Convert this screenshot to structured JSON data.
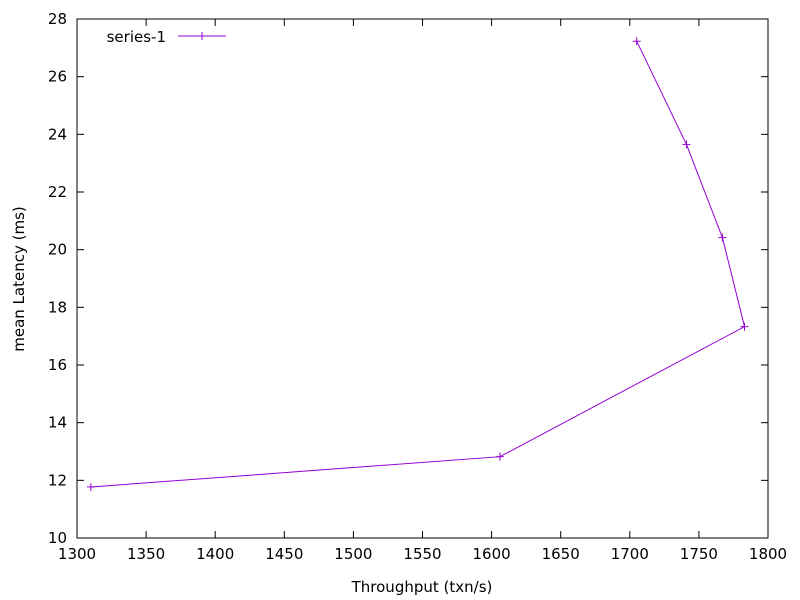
{
  "chart_data": {
    "type": "line",
    "title": "",
    "xlabel": "Throughput (txn/s)",
    "ylabel": "mean Latency (ms)",
    "xlim": [
      1300,
      1800
    ],
    "ylim": [
      10,
      28
    ],
    "xticks": [
      1300,
      1350,
      1400,
      1450,
      1500,
      1550,
      1600,
      1650,
      1700,
      1750,
      1800
    ],
    "yticks": [
      10,
      12,
      14,
      16,
      18,
      20,
      22,
      24,
      26,
      28
    ],
    "grid": false,
    "legend_position": "top-left",
    "series": [
      {
        "name": "series-1",
        "color": "#9400d3",
        "marker": "plus",
        "points": [
          {
            "x": 1310,
            "y": 11.77
          },
          {
            "x": 1606,
            "y": 12.82
          },
          {
            "x": 1783,
            "y": 17.33
          },
          {
            "x": 1767,
            "y": 20.42
          },
          {
            "x": 1741,
            "y": 23.65
          },
          {
            "x": 1705,
            "y": 27.23
          }
        ]
      }
    ]
  }
}
